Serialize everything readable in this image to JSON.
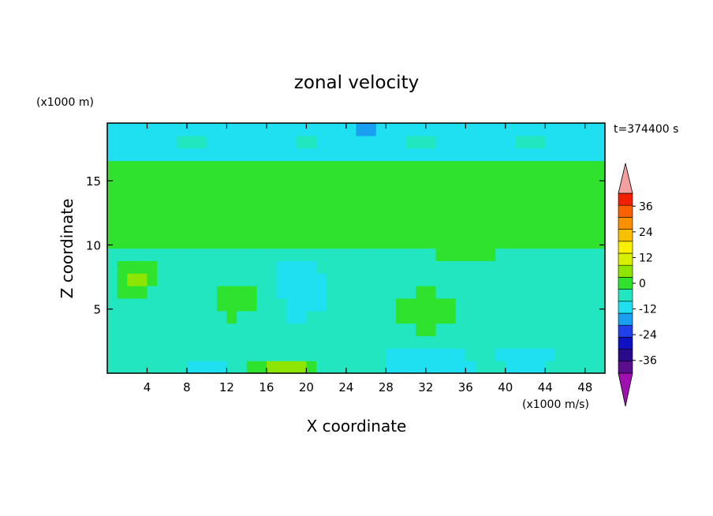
{
  "chart_data": {
    "type": "heatmap",
    "title": "zonal velocity",
    "xlabel": "X coordinate",
    "ylabel": "Z coordinate",
    "y_scale_label": "(x1000 m)",
    "colorbar_unit_label": "(x1000 m/s)",
    "time_label": "t=374400 s",
    "xlim": [
      0,
      50
    ],
    "ylim": [
      0,
      19.5
    ],
    "x_ticks": [
      4,
      8,
      12,
      16,
      20,
      24,
      28,
      32,
      36,
      40,
      44,
      48
    ],
    "y_ticks": [
      5,
      10,
      15
    ],
    "colorbar": {
      "min": -42,
      "max": 42,
      "step": 6,
      "tick_values": [
        -36,
        -24,
        -12,
        0,
        12,
        24,
        36
      ],
      "tick_labels": [
        "-36",
        "-24",
        "-12",
        "0",
        "12",
        "24",
        "36"
      ],
      "colors": [
        "#5a0d8c",
        "#2a0a8a",
        "#1010c0",
        "#2040e8",
        "#1aa0f0",
        "#1ee0f0",
        "#22e6c0",
        "#2ee22e",
        "#8ee600",
        "#d8f000",
        "#f8f000",
        "#f8c000",
        "#f89000",
        "#f86000",
        "#f02000"
      ],
      "under_color": "#a010b0",
      "over_color": "#f5a0a0",
      "grid": {
        "nx": 50,
        "nz": 20
      }
    },
    "features": [
      {
        "x": 18.5,
        "z": 6.2,
        "sx": 3.2,
        "sz": 2.6,
        "value": -13
      },
      {
        "x": 13,
        "z": 5.5,
        "sx": 5,
        "sz": 2.5,
        "value": 1
      },
      {
        "x": 5.5,
        "z": 4.8,
        "sx": 3,
        "sz": 1.8,
        "value": -6
      },
      {
        "x": 26,
        "z": 4.5,
        "sx": 3.2,
        "sz": 2.2,
        "value": -6
      },
      {
        "x": 32,
        "z": 5,
        "sx": 3.5,
        "sz": 1.6,
        "value": 5
      },
      {
        "x": 41,
        "z": 8,
        "sx": 3.5,
        "sz": 2,
        "value": -5
      },
      {
        "x": 46,
        "z": 6,
        "sx": 3,
        "sz": 3,
        "value": -5
      },
      {
        "x": 22,
        "z": 1.5,
        "sx": 10,
        "sz": 1.5,
        "value": -6
      },
      {
        "x": 33,
        "z": 0.8,
        "sx": 4,
        "sz": 0.9,
        "value": -12
      },
      {
        "x": 10,
        "z": 0.6,
        "sx": 2,
        "sz": 0.6,
        "value": -12
      },
      {
        "x": 18,
        "z": 0.5,
        "sx": 3,
        "sz": 0.7,
        "value": 12
      },
      {
        "x": 42,
        "z": 1.2,
        "sx": 4,
        "sz": 1.2,
        "value": -8
      },
      {
        "x": 26,
        "z": 19.3,
        "sx": 4,
        "sz": 0.6,
        "value": -14
      },
      {
        "x": 37,
        "z": 11,
        "sx": 6,
        "sz": 2,
        "value": 6
      },
      {
        "x": 10,
        "z": 13.5,
        "sx": 8,
        "sz": 1.5,
        "value": 5
      },
      {
        "x": 3,
        "z": 7.5,
        "sx": 2,
        "sz": 1.5,
        "value": 7
      }
    ]
  }
}
